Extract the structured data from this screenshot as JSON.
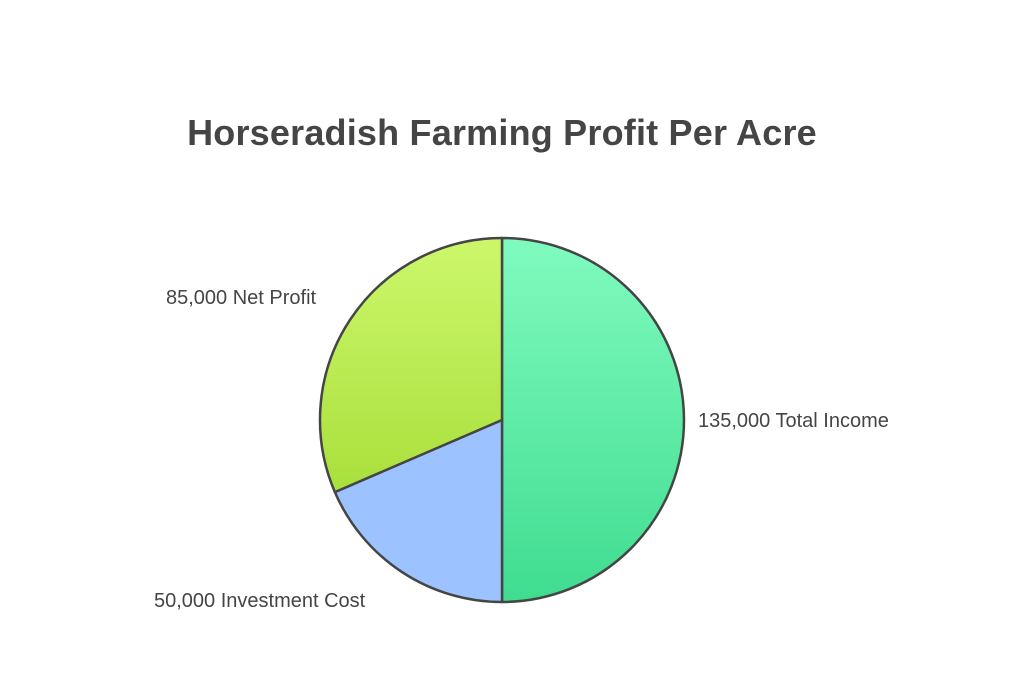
{
  "chart_data": {
    "type": "pie",
    "title": "Horseradish Farming Profit Per Acre",
    "slices": [
      {
        "label": "135,000 Total Income",
        "value": 135000,
        "colors": [
          "#80fbbf",
          "#3fdc8f"
        ]
      },
      {
        "label": "50,000 Investment Cost",
        "value": 50000,
        "colors": [
          "#9cc3ff",
          "#9cc3ff"
        ]
      },
      {
        "label": "85,000 Net Profit",
        "value": 85000,
        "colors": [
          "#ccf76b",
          "#a9e03c"
        ]
      }
    ],
    "stroke_color": "#454545"
  }
}
